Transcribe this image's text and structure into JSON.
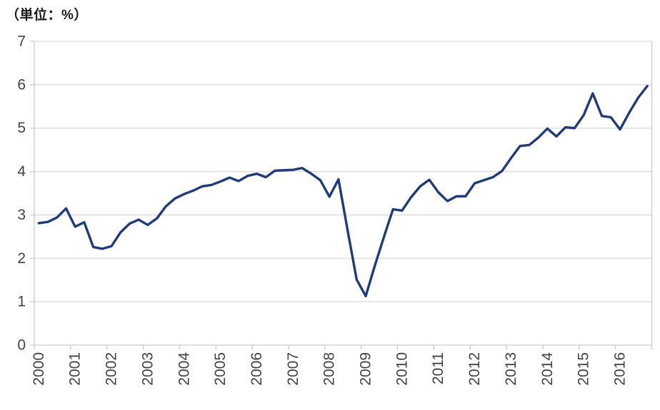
{
  "chart": {
    "unit_label": "（単位：%）",
    "line_color": "#1f3c78",
    "grid_color": "#d9d9d9",
    "axis_color": "#c9c9c9",
    "tick_label_color": "#3f4247",
    "background": "#ffffff"
  },
  "chart_data": {
    "type": "line",
    "title": "（単位：%）",
    "frequency": "quarterly",
    "x_start": "2000Q1",
    "x_end": "2016Q4",
    "x_tick_labels": [
      "2000",
      "2001",
      "2002",
      "2003",
      "2004",
      "2005",
      "2006",
      "2007",
      "2008",
      "2009",
      "2010",
      "2011",
      "2012",
      "2013",
      "2014",
      "2015",
      "2016"
    ],
    "y_ticks": [
      0,
      1,
      2,
      3,
      4,
      5,
      6,
      7
    ],
    "ylim": [
      0,
      7
    ],
    "grid": "horizontal",
    "legend": "none",
    "series": [
      {
        "name": "ratio-percent",
        "values": [
          2.81,
          2.84,
          2.94,
          3.15,
          2.73,
          2.83,
          2.26,
          2.22,
          2.28,
          2.6,
          2.8,
          2.89,
          2.77,
          2.92,
          3.2,
          3.38,
          3.48,
          3.56,
          3.66,
          3.69,
          3.77,
          3.86,
          3.78,
          3.9,
          3.95,
          3.87,
          4.02,
          4.03,
          4.04,
          4.08,
          3.95,
          3.8,
          3.42,
          3.82,
          2.65,
          1.51,
          1.13,
          1.83,
          2.49,
          3.13,
          3.1,
          3.41,
          3.66,
          3.81,
          3.52,
          3.32,
          3.43,
          3.43,
          3.73,
          3.8,
          3.87,
          4.01,
          4.31,
          4.59,
          4.61,
          4.78,
          4.99,
          4.81,
          5.02,
          5.0,
          5.3,
          5.8,
          5.28,
          5.25,
          4.97,
          5.35,
          5.7,
          5.97
        ]
      }
    ]
  }
}
